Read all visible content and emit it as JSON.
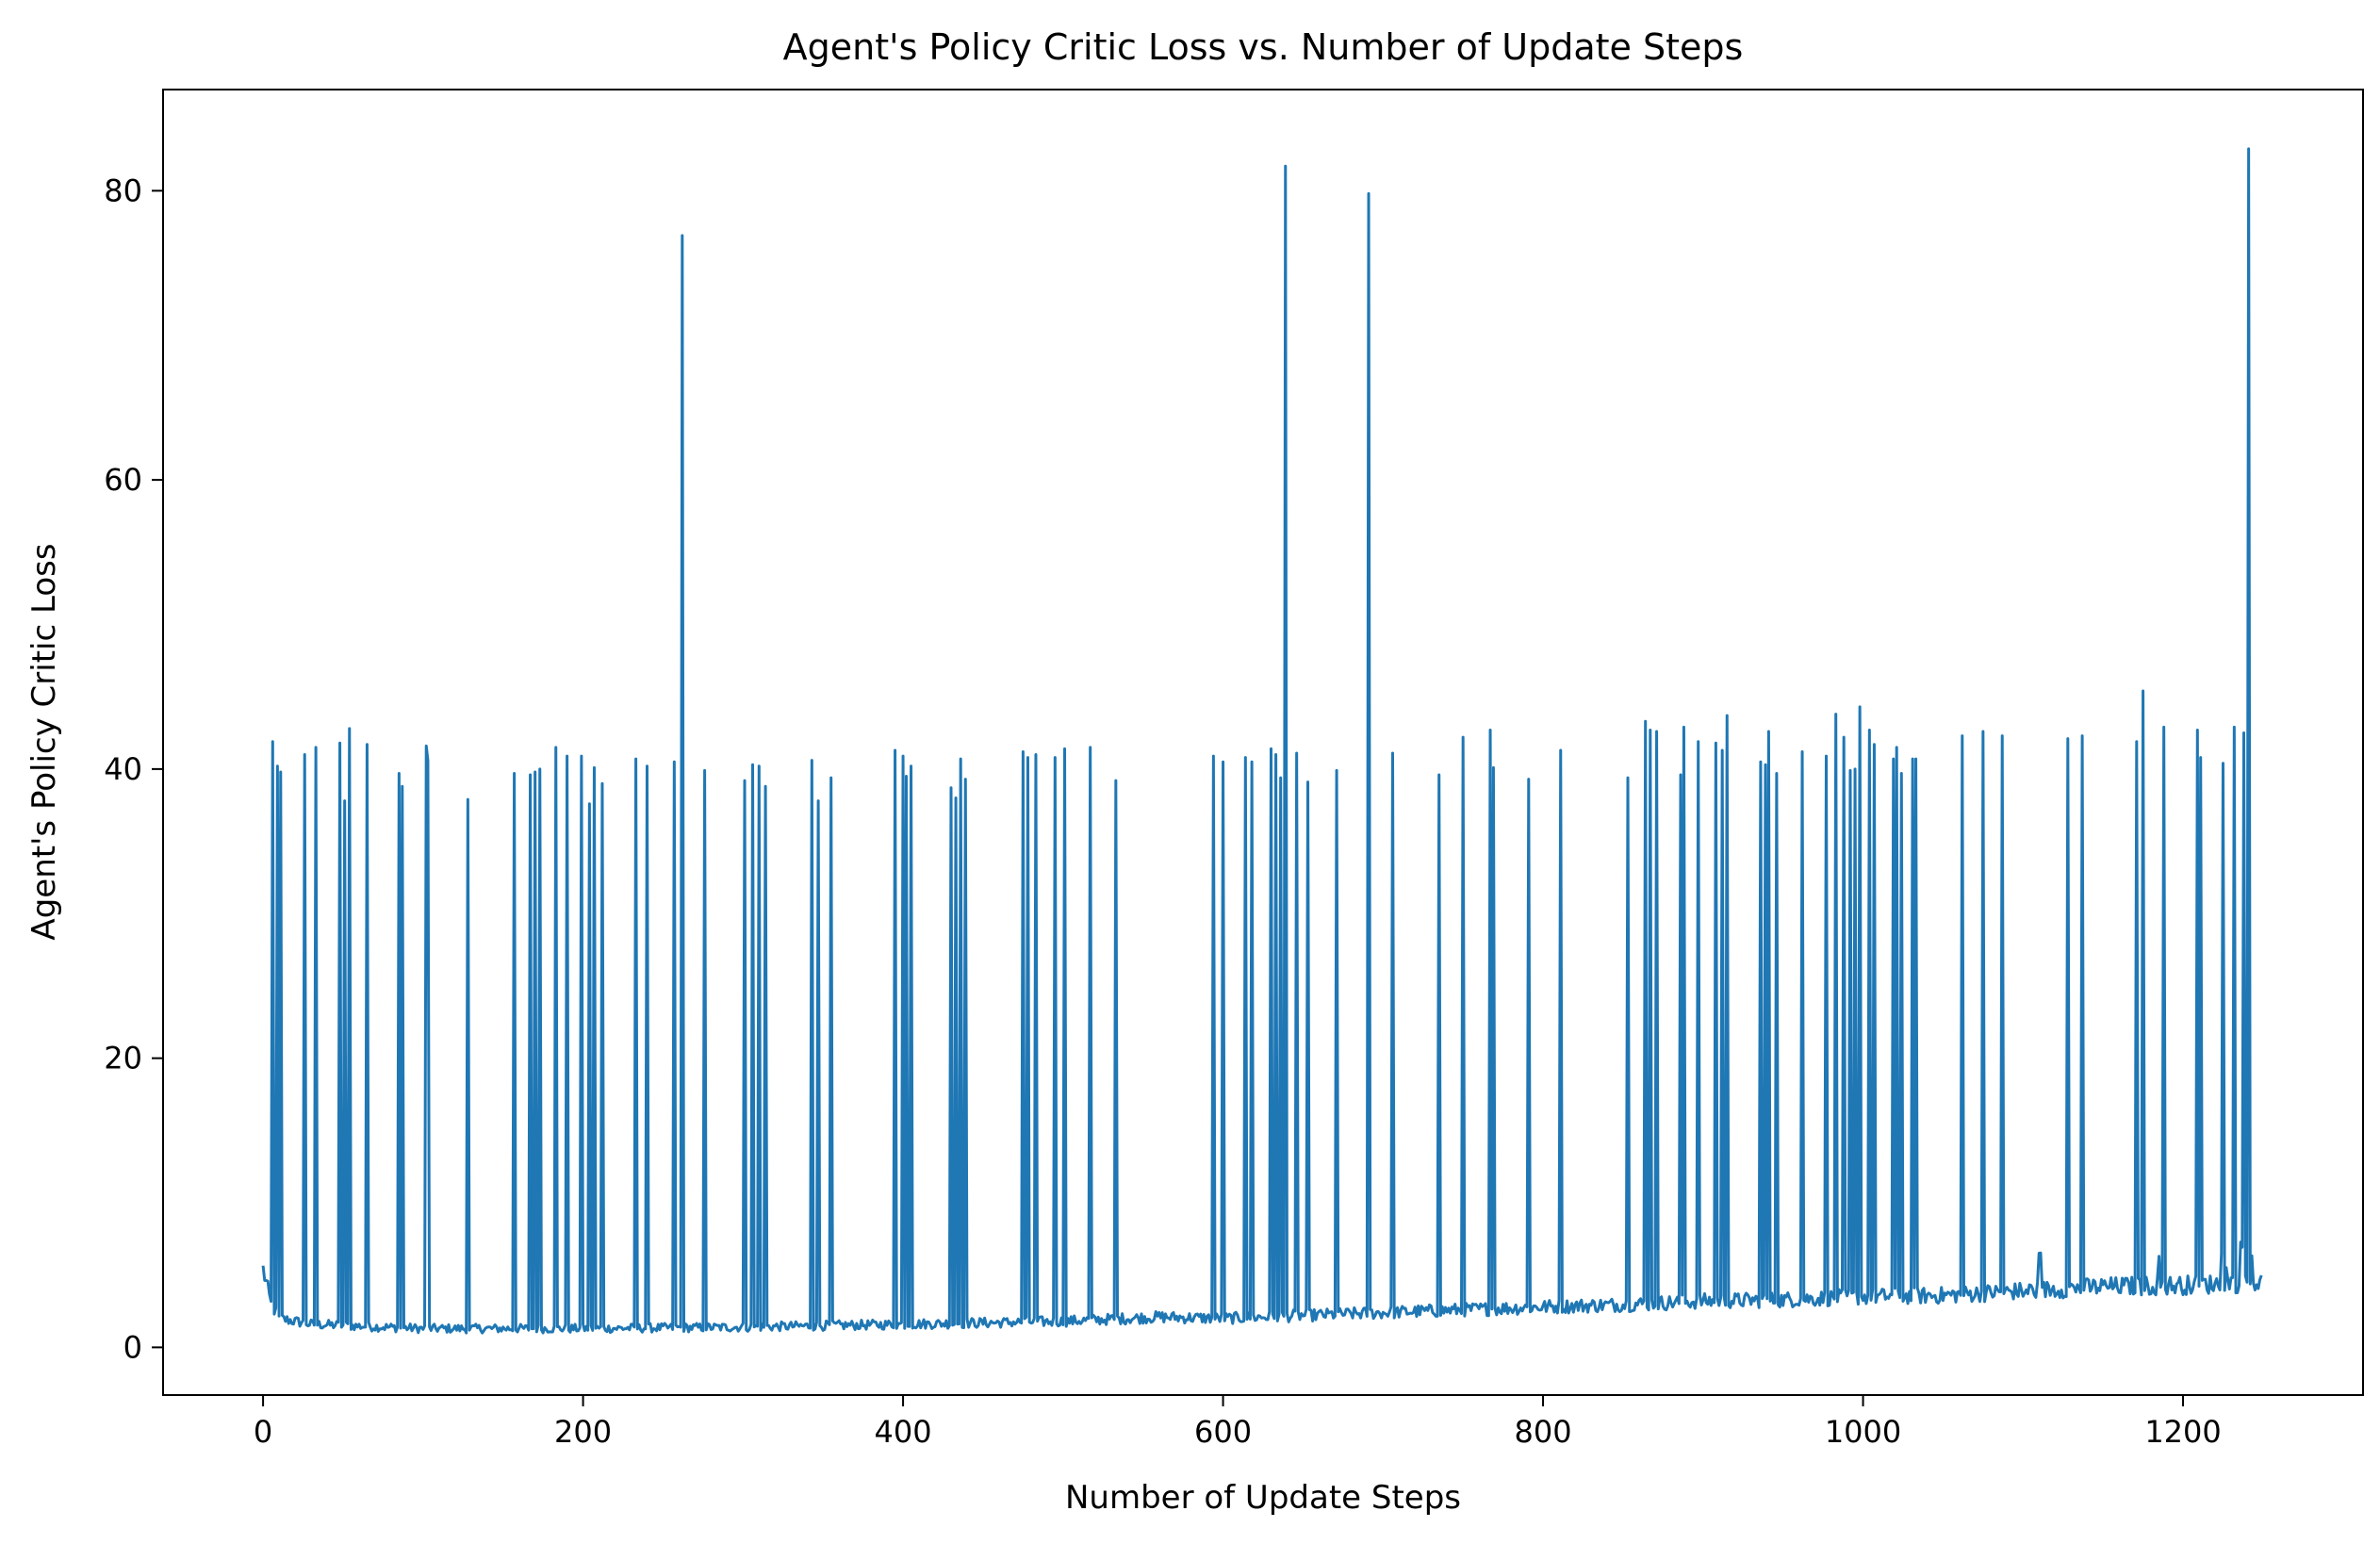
{
  "chart_data": {
    "type": "line",
    "title": "Agent's Policy Critic Loss vs. Number of Update Steps",
    "xlabel": "Number of Update Steps",
    "ylabel": "Agent's Policy Critic Loss",
    "xlim": [
      -62.5,
      1312.5
    ],
    "ylim": [
      -3.3,
      87.0
    ],
    "xticks": [
      0,
      200,
      400,
      600,
      800,
      1000,
      1200
    ],
    "yticks": [
      0,
      20,
      40,
      60,
      80
    ],
    "grid": false,
    "legend": "none",
    "color": "#1f77b4",
    "n_points": 1250,
    "baseline": [
      [
        0,
        5.4
      ],
      [
        5,
        3.0
      ],
      [
        10,
        2.0
      ],
      [
        30,
        1.6
      ],
      [
        100,
        1.3
      ],
      [
        200,
        1.3
      ],
      [
        300,
        1.4
      ],
      [
        400,
        1.6
      ],
      [
        500,
        1.8
      ],
      [
        560,
        2.1
      ],
      [
        600,
        2.0
      ],
      [
        700,
        2.4
      ],
      [
        800,
        2.8
      ],
      [
        860,
        3.0
      ],
      [
        900,
        3.2
      ],
      [
        950,
        3.3
      ],
      [
        1000,
        3.5
      ],
      [
        1050,
        3.6
      ],
      [
        1100,
        3.9
      ],
      [
        1150,
        4.2
      ],
      [
        1200,
        4.3
      ],
      [
        1249,
        4.5
      ]
    ],
    "spikes": [
      [
        6,
        41.9
      ],
      [
        9,
        40.2
      ],
      [
        11,
        39.8
      ],
      [
        26,
        41.0
      ],
      [
        33,
        41.5
      ],
      [
        48,
        41.8
      ],
      [
        51,
        37.8
      ],
      [
        54,
        42.8
      ],
      [
        65,
        41.7
      ],
      [
        85,
        39.7
      ],
      [
        87,
        38.8
      ],
      [
        102,
        41.6
      ],
      [
        103,
        40.6
      ],
      [
        128,
        37.9
      ],
      [
        157,
        39.7
      ],
      [
        167,
        39.6
      ],
      [
        170,
        39.8
      ],
      [
        173,
        40.0
      ],
      [
        183,
        41.5
      ],
      [
        190,
        40.9
      ],
      [
        199,
        40.9
      ],
      [
        204,
        37.6
      ],
      [
        207,
        40.1
      ],
      [
        212,
        39.0
      ],
      [
        233,
        40.7
      ],
      [
        240,
        40.2
      ],
      [
        257,
        40.5
      ],
      [
        262,
        76.9
      ],
      [
        276,
        39.9
      ],
      [
        301,
        39.2
      ],
      [
        306,
        40.3
      ],
      [
        310,
        40.2
      ],
      [
        314,
        38.8
      ],
      [
        343,
        40.6
      ],
      [
        347,
        37.8
      ],
      [
        355,
        39.4
      ],
      [
        395,
        41.3
      ],
      [
        400,
        40.9
      ],
      [
        402,
        39.5
      ],
      [
        405,
        40.2
      ],
      [
        430,
        38.7
      ],
      [
        433,
        38.0
      ],
      [
        436,
        40.7
      ],
      [
        439,
        39.3
      ],
      [
        475,
        41.2
      ],
      [
        478,
        40.8
      ],
      [
        483,
        41.0
      ],
      [
        495,
        40.8
      ],
      [
        501,
        41.4
      ],
      [
        517,
        41.5
      ],
      [
        533,
        39.2
      ],
      [
        594,
        40.9
      ],
      [
        600,
        40.5
      ],
      [
        614,
        40.8
      ],
      [
        618,
        40.5
      ],
      [
        630,
        41.4
      ],
      [
        633,
        41.0
      ],
      [
        636,
        39.4
      ],
      [
        639,
        81.7
      ],
      [
        646,
        41.1
      ],
      [
        653,
        39.1
      ],
      [
        671,
        39.9
      ],
      [
        691,
        79.8
      ],
      [
        706,
        41.1
      ],
      [
        735,
        39.6
      ],
      [
        750,
        42.2
      ],
      [
        767,
        42.7
      ],
      [
        769,
        40.1
      ],
      [
        791,
        39.3
      ],
      [
        811,
        41.3
      ],
      [
        853,
        39.4
      ],
      [
        864,
        43.3
      ],
      [
        867,
        42.7
      ],
      [
        871,
        42.6
      ],
      [
        886,
        39.6
      ],
      [
        888,
        42.9
      ],
      [
        897,
        41.9
      ],
      [
        908,
        41.8
      ],
      [
        912,
        41.3
      ],
      [
        915,
        43.7
      ],
      [
        936,
        40.5
      ],
      [
        939,
        40.3
      ],
      [
        941,
        42.6
      ],
      [
        946,
        39.7
      ],
      [
        962,
        41.2
      ],
      [
        977,
        40.9
      ],
      [
        983,
        43.8
      ],
      [
        988,
        42.2
      ],
      [
        992,
        39.9
      ],
      [
        995,
        40.0
      ],
      [
        998,
        44.3
      ],
      [
        1004,
        42.7
      ],
      [
        1007,
        41.7
      ],
      [
        1019,
        40.7
      ],
      [
        1021,
        41.5
      ],
      [
        1024,
        39.7
      ],
      [
        1031,
        40.7
      ],
      [
        1033,
        40.7
      ],
      [
        1062,
        42.3
      ],
      [
        1075,
        42.6
      ],
      [
        1087,
        42.3
      ],
      [
        1128,
        42.1
      ],
      [
        1137,
        42.3
      ],
      [
        1171,
        41.9
      ],
      [
        1175,
        45.4
      ],
      [
        1188,
        42.9
      ],
      [
        1209,
        42.7
      ],
      [
        1211,
        40.8
      ],
      [
        1225,
        40.4
      ],
      [
        1232,
        42.9
      ],
      [
        1238,
        42.5
      ],
      [
        1241,
        82.9
      ]
    ]
  }
}
